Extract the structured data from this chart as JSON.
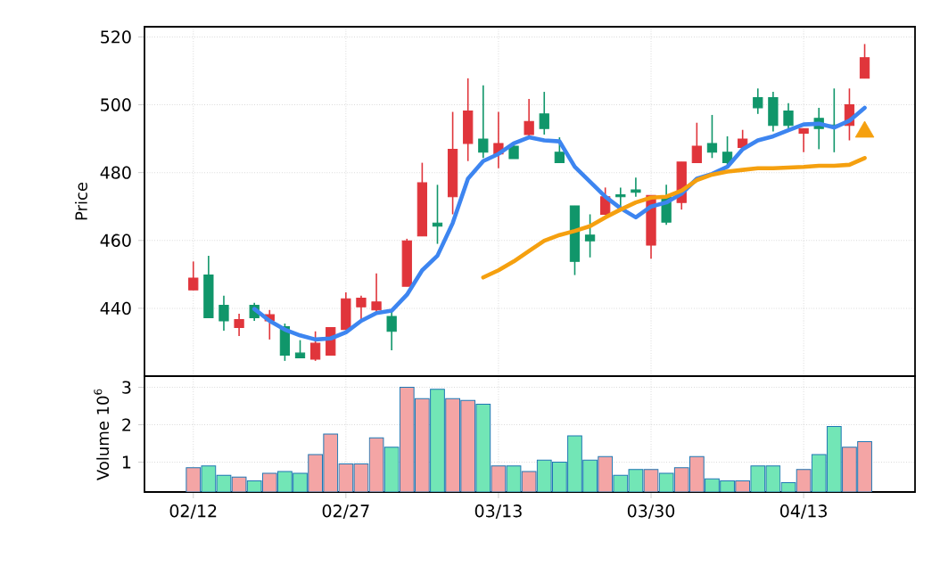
{
  "chart_data": [
    {
      "type": "candlestick",
      "ylabel": "Price",
      "categories": [
        null,
        null,
        null,
        null,
        null,
        null,
        null,
        null,
        null,
        null,
        null,
        null,
        null,
        null,
        null,
        null,
        null,
        null,
        null,
        null,
        null,
        null,
        null,
        null,
        null,
        null,
        null,
        null,
        null,
        null,
        null,
        null,
        null,
        null,
        null,
        null,
        null,
        null,
        null,
        null,
        null,
        null,
        null,
        null,
        null
      ],
      "ohlc": [
        [
          445.4,
          453.8,
          445.4,
          448.9
        ],
        [
          449.8,
          455.5,
          437.2,
          437.2
        ],
        [
          440.9,
          443.7,
          433.4,
          436.3
        ],
        [
          434.3,
          438.4,
          431.8,
          436.7
        ],
        [
          440.9,
          441.6,
          436.3,
          437.2
        ],
        [
          436.3,
          439.5,
          430.8,
          438.1
        ],
        [
          434.6,
          435.5,
          424.5,
          426.2
        ],
        [
          426.8,
          430.6,
          425.4,
          425.4
        ],
        [
          425.0,
          433.2,
          424.5,
          429.7
        ],
        [
          426.2,
          434.3,
          426.2,
          434.3
        ],
        [
          433.7,
          444.7,
          433.7,
          442.8
        ],
        [
          440.4,
          443.7,
          436.3,
          443.0
        ],
        [
          439.5,
          450.3,
          438.1,
          441.9
        ],
        [
          437.6,
          439.8,
          427.6,
          433.2
        ],
        [
          446.5,
          460.5,
          446.5,
          459.9
        ],
        [
          461.3,
          482.9,
          461.3,
          477.0
        ],
        [
          465.1,
          476.4,
          459.0,
          464.2
        ],
        [
          472.9,
          497.9,
          467.7,
          486.9
        ],
        [
          488.6,
          507.8,
          483.4,
          498.2
        ],
        [
          489.9,
          505.7,
          484.3,
          486.0
        ],
        [
          485.5,
          497.9,
          481.3,
          488.6
        ],
        [
          487.8,
          488.6,
          484.1,
          484.1
        ],
        [
          491.2,
          501.7,
          490.4,
          495.1
        ],
        [
          497.3,
          503.8,
          491.2,
          493.0
        ],
        [
          486.0,
          490.4,
          482.9,
          482.9
        ],
        [
          470.2,
          470.2,
          449.8,
          453.8
        ],
        [
          461.6,
          467.7,
          455.0,
          459.9
        ],
        [
          467.7,
          475.6,
          467.7,
          472.9
        ],
        [
          473.5,
          475.6,
          469.5,
          472.9
        ],
        [
          474.9,
          478.5,
          472.9,
          474.2
        ],
        [
          458.6,
          473.3,
          454.6,
          473.3
        ],
        [
          472.9,
          476.4,
          464.6,
          465.4
        ],
        [
          471.2,
          483.1,
          469.1,
          483.1
        ],
        [
          482.9,
          494.7,
          482.9,
          487.8
        ],
        [
          488.6,
          497.0,
          484.3,
          486.0
        ],
        [
          486.0,
          490.7,
          481.7,
          482.9
        ],
        [
          487.4,
          492.6,
          487.4,
          489.9
        ],
        [
          502.1,
          504.8,
          497.3,
          499.1
        ],
        [
          502.1,
          503.8,
          492.1,
          493.9
        ],
        [
          498.2,
          500.5,
          492.1,
          493.9
        ],
        [
          491.6,
          493.0,
          486.0,
          493.0
        ],
        [
          496.0,
          499.1,
          486.9,
          493.0
        ],
        [
          494.0,
          504.8,
          486.0,
          493.5
        ],
        [
          493.9,
          504.8,
          489.5,
          500.0
        ],
        [
          507.8,
          517.9,
          507.8,
          513.9
        ]
      ],
      "colors": [
        "#e0353b",
        "#10966a",
        "#10966a",
        "#e0353b",
        "#10966a",
        "#e0353b",
        "#10966a",
        "#10966a",
        "#e0353b",
        "#e0353b",
        "#e0353b",
        "#e0353b",
        "#e0353b",
        "#10966a",
        "#e0353b",
        "#e0353b",
        "#10966a",
        "#e0353b",
        "#e0353b",
        "#10966a",
        "#e0353b",
        "#10966a",
        "#e0353b",
        "#10966a",
        "#10966a",
        "#10966a",
        "#10966a",
        "#e0353b",
        "#10966a",
        "#10966a",
        "#e0353b",
        "#10966a",
        "#e0353b",
        "#e0353b",
        "#10966a",
        "#10966a",
        "#e0353b",
        "#10966a",
        "#10966a",
        "#10966a",
        "#e0353b",
        "#10966a",
        "#10966a",
        "#e0353b",
        "#e0353b"
      ],
      "series": [
        {
          "type": "line",
          "color": "#3d85f0",
          "values": [
            null,
            null,
            null,
            null,
            439.8,
            436.3,
            433.7,
            432,
            430.8,
            431.1,
            432.9,
            436.3,
            438.6,
            439.3,
            444,
            451.2,
            455.5,
            465.1,
            478.2,
            483.4,
            485.5,
            488.6,
            490.4,
            489.5,
            489.2,
            481.7,
            477.3,
            472.9,
            469.5,
            466.8,
            470,
            471.2,
            473.8,
            478.2,
            479.6,
            481.7,
            486.9,
            489.5,
            490.7,
            492.5,
            494.2,
            494.4,
            493.3,
            495.3,
            499.1
          ]
        },
        {
          "type": "line",
          "color": "#f5a00f",
          "values": [
            null,
            null,
            null,
            null,
            null,
            null,
            null,
            null,
            null,
            null,
            null,
            null,
            null,
            null,
            null,
            null,
            null,
            null,
            null,
            449.1,
            451.2,
            453.8,
            456.9,
            459.9,
            461.6,
            462.8,
            464.2,
            466.8,
            469.1,
            471.2,
            472.6,
            472.9,
            474.7,
            477.8,
            479.4,
            480.3,
            480.8,
            481.3,
            481.3,
            481.5,
            481.7,
            482,
            482,
            482.3,
            484.3
          ]
        },
        {
          "type": "scatter",
          "marker": "triangle",
          "color": "#f5a00f",
          "values": [
            null,
            null,
            null,
            null,
            null,
            null,
            null,
            null,
            null,
            null,
            null,
            null,
            null,
            null,
            null,
            null,
            null,
            null,
            null,
            null,
            null,
            null,
            null,
            null,
            null,
            null,
            null,
            null,
            null,
            null,
            null,
            null,
            null,
            null,
            null,
            null,
            null,
            null,
            null,
            null,
            null,
            null,
            null,
            null,
            492
          ]
        }
      ],
      "ylim": [
        420,
        523
      ],
      "yticks": [
        440,
        460,
        480,
        500,
        520
      ],
      "grid": true,
      "tick_labels": "y"
    },
    {
      "type": "bar",
      "ylabel": "Volume  10$^{6}$",
      "categories": [
        "02/12",
        null,
        null,
        null,
        null,
        null,
        null,
        null,
        null,
        null,
        "02/27",
        null,
        null,
        null,
        null,
        null,
        null,
        null,
        null,
        null,
        "03/13",
        null,
        null,
        null,
        null,
        null,
        null,
        null,
        null,
        null,
        "03/30",
        null,
        null,
        null,
        null,
        null,
        null,
        null,
        null,
        null,
        "04/13",
        null,
        null,
        null,
        null
      ],
      "values": [
        0.85,
        0.9,
        0.65,
        0.6,
        0.5,
        0.7,
        0.75,
        0.7,
        1.2,
        1.75,
        0.95,
        0.95,
        1.65,
        1.4,
        3.0,
        2.7,
        2.95,
        2.7,
        2.65,
        2.55,
        0.9,
        0.9,
        0.75,
        1.05,
        1.0,
        1.7,
        1.05,
        1.15,
        0.65,
        0.8,
        0.8,
        0.7,
        0.85,
        1.15,
        0.55,
        0.5,
        0.5,
        0.9,
        0.9,
        0.45,
        0.8,
        1.2,
        1.95,
        1.4,
        1.55
      ],
      "colors": [
        "#f4a5a5",
        "#72e6b6",
        "#72e6b6",
        "#f4a5a5",
        "#72e6b6",
        "#f4a5a5",
        "#72e6b6",
        "#72e6b6",
        "#f4a5a5",
        "#f4a5a5",
        "#f4a5a5",
        "#f4a5a5",
        "#f4a5a5",
        "#72e6b6",
        "#f4a5a5",
        "#f4a5a5",
        "#72e6b6",
        "#f4a5a5",
        "#f4a5a5",
        "#72e6b6",
        "#f4a5a5",
        "#72e6b6",
        "#f4a5a5",
        "#72e6b6",
        "#72e6b6",
        "#72e6b6",
        "#72e6b6",
        "#f4a5a5",
        "#72e6b6",
        "#72e6b6",
        "#f4a5a5",
        "#72e6b6",
        "#f4a5a5",
        "#f4a5a5",
        "#72e6b6",
        "#72e6b6",
        "#f4a5a5",
        "#72e6b6",
        "#72e6b6",
        "#72e6b6",
        "#f4a5a5",
        "#72e6b6",
        "#72e6b6",
        "#f4a5a5",
        "#f4a5a5"
      ],
      "ylim": [
        0.2,
        3.3
      ],
      "yticks": [
        1,
        2,
        3
      ],
      "grid": true
    }
  ]
}
